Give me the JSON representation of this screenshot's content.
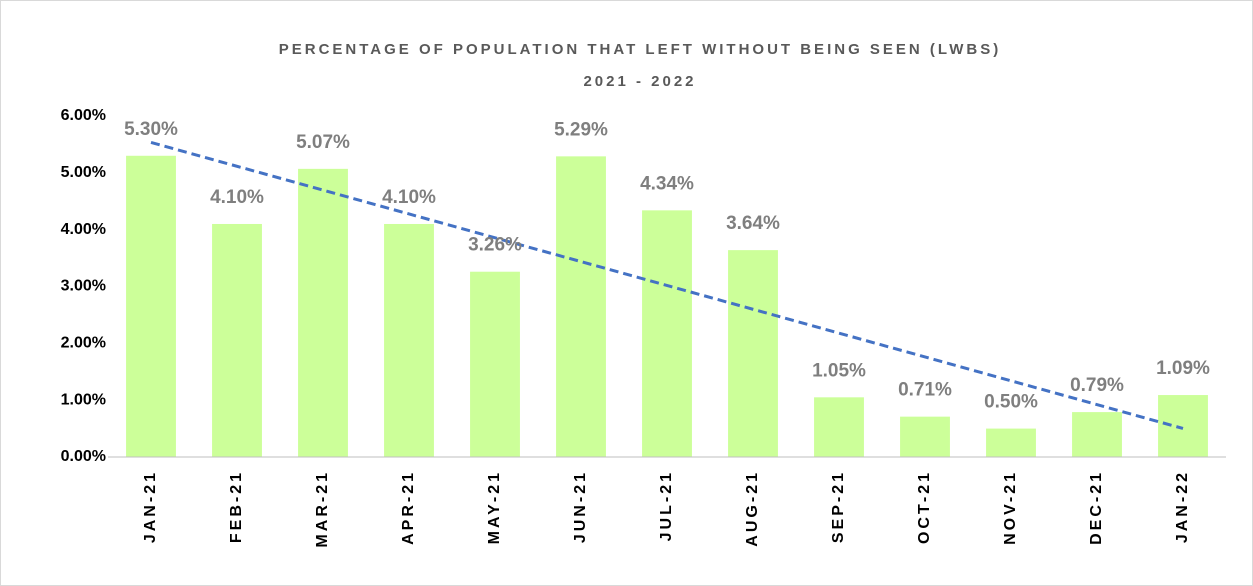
{
  "chart_data": {
    "type": "bar",
    "title": "PERCENTAGE OF POPULATION THAT LEFT WITHOUT BEING SEEN (LWBS)",
    "subtitle": "2021 - 2022",
    "categories": [
      "JAN-21",
      "FEB-21",
      "MAR-21",
      "APR-21",
      "MAY-21",
      "JUN-21",
      "JUL-21",
      "AUG-21",
      "SEP-21",
      "OCT-21",
      "NOV-21",
      "DEC-21",
      "JAN-22"
    ],
    "values": [
      5.3,
      4.1,
      5.07,
      4.1,
      3.26,
      5.29,
      4.34,
      3.64,
      1.05,
      0.71,
      0.5,
      0.79,
      1.09
    ],
    "value_labels": [
      "5.30%",
      "4.10%",
      "5.07%",
      "4.10%",
      "3.26%",
      "5.29%",
      "4.34%",
      "3.64%",
      "1.05%",
      "0.71%",
      "0.50%",
      "0.79%",
      "1.09%"
    ],
    "color": "#ccff99",
    "trendline": true,
    "trendline_color": "#4472c4",
    "ylim": [
      0,
      6
    ],
    "yticks": [
      {
        "value": 0,
        "label": "0.00%"
      },
      {
        "value": 1,
        "label": "1.00%"
      },
      {
        "value": 2,
        "label": "2.00%"
      },
      {
        "value": 3,
        "label": "3.00%"
      },
      {
        "value": 4,
        "label": "4.00%"
      },
      {
        "value": 5,
        "label": "5.00%"
      },
      {
        "value": 6,
        "label": "6.00%"
      }
    ],
    "grid": false
  }
}
